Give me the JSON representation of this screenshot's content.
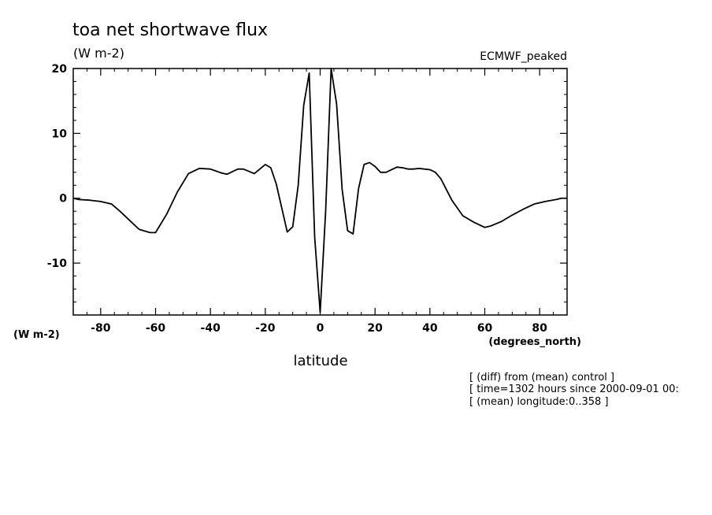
{
  "chart_data": {
    "type": "line",
    "title": "toa net shortwave flux",
    "units": "(W m-2)",
    "dataset_label": "ECMWF_peaked",
    "xlabel": "latitude",
    "x_units_label": "(degrees_north)",
    "y_units_label": "(W m-2)",
    "xlim": [
      -90,
      90
    ],
    "ylim": [
      -18,
      20
    ],
    "xticks": [
      -80,
      -60,
      -40,
      -20,
      0,
      20,
      40,
      60,
      80
    ],
    "xtick_labels": [
      "-80",
      "-60",
      "-40",
      "-20",
      "0",
      "20",
      "40",
      "60",
      "80"
    ],
    "yticks": [
      -10,
      0,
      10,
      20
    ],
    "ytick_labels": [
      "-10",
      "0",
      "10",
      "20"
    ],
    "grid": false,
    "notes": [
      "[ (diff) from (mean) control ]",
      "[ time=1302 hours since 2000-09-01 00:",
      "[ (mean) longitude:0..358 ]"
    ],
    "series": [
      {
        "x": [
          -90,
          -88,
          -84,
          -80,
          -76,
          -73,
          -70,
          -66,
          -62,
          -60,
          -56,
          -52,
          -48,
          -44,
          -40,
          -36,
          -34,
          -30,
          -28,
          -24,
          -20,
          -18,
          -16,
          -12,
          -10,
          -8,
          -6,
          -4,
          -2,
          0,
          2,
          4,
          6,
          8,
          10,
          12,
          14,
          16,
          18,
          20,
          22,
          24,
          28,
          30,
          32,
          34,
          36,
          38,
          40,
          42,
          44,
          48,
          52,
          56,
          60,
          62,
          66,
          70,
          74,
          78,
          82,
          86,
          88,
          90
        ],
        "y": [
          0,
          -0.2,
          -0.3,
          -0.5,
          -0.9,
          -2,
          -3.2,
          -4.8,
          -5.3,
          -5.3,
          -2.5,
          1,
          3.8,
          4.6,
          4.5,
          3.9,
          3.7,
          4.5,
          4.5,
          3.8,
          5.2,
          4.7,
          2.2,
          -5.2,
          -4.4,
          2,
          14.3,
          19.3,
          -6,
          -17.6,
          -2,
          20,
          14.5,
          1.4,
          -5,
          -5.5,
          1.5,
          5.2,
          5.5,
          4.9,
          4,
          4,
          4.8,
          4.7,
          4.5,
          4.5,
          4.6,
          4.5,
          4.4,
          4,
          3,
          -0.3,
          -2.7,
          -3.7,
          -4.5,
          -4.3,
          -3.6,
          -2.6,
          -1.7,
          -0.9,
          -0.5,
          -0.2,
          0,
          0
        ]
      }
    ]
  }
}
